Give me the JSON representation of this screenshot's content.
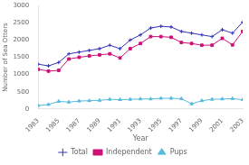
{
  "chart_data": {
    "type": "line",
    "xlabel": "Year",
    "ylabel": "Number of Sea Otters",
    "x": [
      1983,
      1984,
      1985,
      1986,
      1987,
      1988,
      1989,
      1990,
      1991,
      1992,
      1993,
      1994,
      1995,
      1996,
      1997,
      1998,
      1999,
      2000,
      2001,
      2002,
      2003
    ],
    "series": [
      {
        "name": "Total",
        "color": "#3333bb",
        "marker": "cross",
        "values": [
          1300,
          1250,
          1350,
          1600,
          1650,
          1700,
          1750,
          1850,
          1750,
          2000,
          2150,
          2350,
          2400,
          2380,
          2250,
          2200,
          2150,
          2100,
          2300,
          2200,
          2520
        ]
      },
      {
        "name": "Independent",
        "color": "#cc1177",
        "marker": "square",
        "values": [
          1150,
          1100,
          1120,
          1450,
          1500,
          1540,
          1570,
          1600,
          1480,
          1750,
          1900,
          2100,
          2100,
          2080,
          1930,
          1900,
          1850,
          1850,
          2050,
          1860,
          2250
        ]
      },
      {
        "name": "Pups",
        "color": "#55bbdd",
        "marker": "triangle",
        "values": [
          100,
          130,
          220,
          200,
          230,
          240,
          250,
          280,
          270,
          280,
          290,
          290,
          310,
          310,
          300,
          150,
          240,
          280,
          290,
          300,
          270
        ]
      }
    ],
    "xlim": [
      1983,
      2003
    ],
    "xticks": [
      1983,
      1985,
      1987,
      1989,
      1991,
      1993,
      1995,
      1997,
      1999,
      2001,
      2003
    ],
    "ylim": [
      0,
      3000
    ],
    "yticks": [
      0,
      500,
      1000,
      1500,
      2000,
      2500,
      3000
    ],
    "grid": false,
    "legend": "bottom"
  }
}
